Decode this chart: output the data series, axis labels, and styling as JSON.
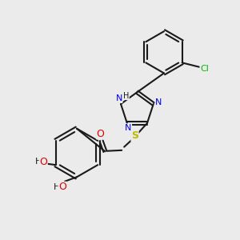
{
  "background_color": "#ebebeb",
  "bond_color": "#1a1a1a",
  "atom_colors": {
    "N": "#0000ee",
    "O": "#dd0000",
    "S": "#bbbb00",
    "Cl": "#00bb00",
    "C": "#1a1a1a",
    "H": "#1a1a1a"
  },
  "figsize": [
    3.0,
    3.0
  ],
  "dpi": 100
}
